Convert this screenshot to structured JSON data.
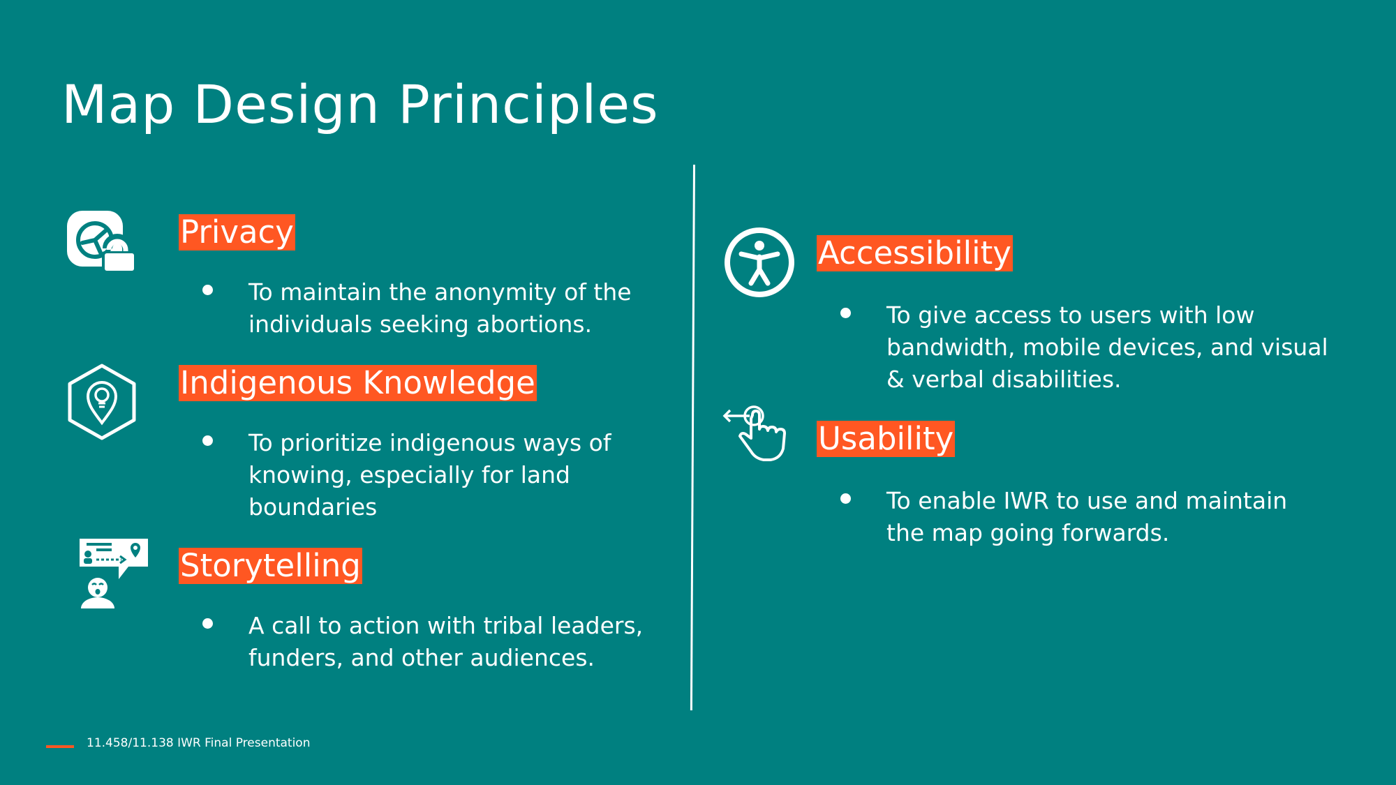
{
  "title": "Map Design Principles",
  "accent_color": "#ff5722",
  "background_color": "#008080",
  "left_column": [
    {
      "heading": "Privacy",
      "icon": "privacy-lock-icon",
      "bullet_lines": [
        "To maintain the anonymity of the",
        "individuals seeking abortions."
      ]
    },
    {
      "heading": "Indigenous Knowledge",
      "icon": "lightbulb-pin-hexagon-icon",
      "bullet_lines": [
        "To prioritize indigenous ways of",
        "knowing, especially for land",
        "boundaries"
      ]
    },
    {
      "heading": "Storytelling",
      "icon": "storytelling-speech-icon",
      "bullet_lines": [
        "A call to action with tribal leaders,",
        "funders, and other audiences."
      ]
    }
  ],
  "right_column": [
    {
      "heading": "Accessibility",
      "icon": "accessibility-person-icon",
      "bullet_lines": [
        "To give access to users with low",
        "bandwidth, mobile devices, and visual",
        "& verbal disabilities."
      ]
    },
    {
      "heading": "Usability",
      "icon": "hand-tap-swipe-icon",
      "bullet_lines": [
        "To enable IWR to use and maintain",
        "the map going forwards."
      ]
    }
  ],
  "footer": {
    "text": "11.458/11.138 IWR Final Presentation"
  }
}
